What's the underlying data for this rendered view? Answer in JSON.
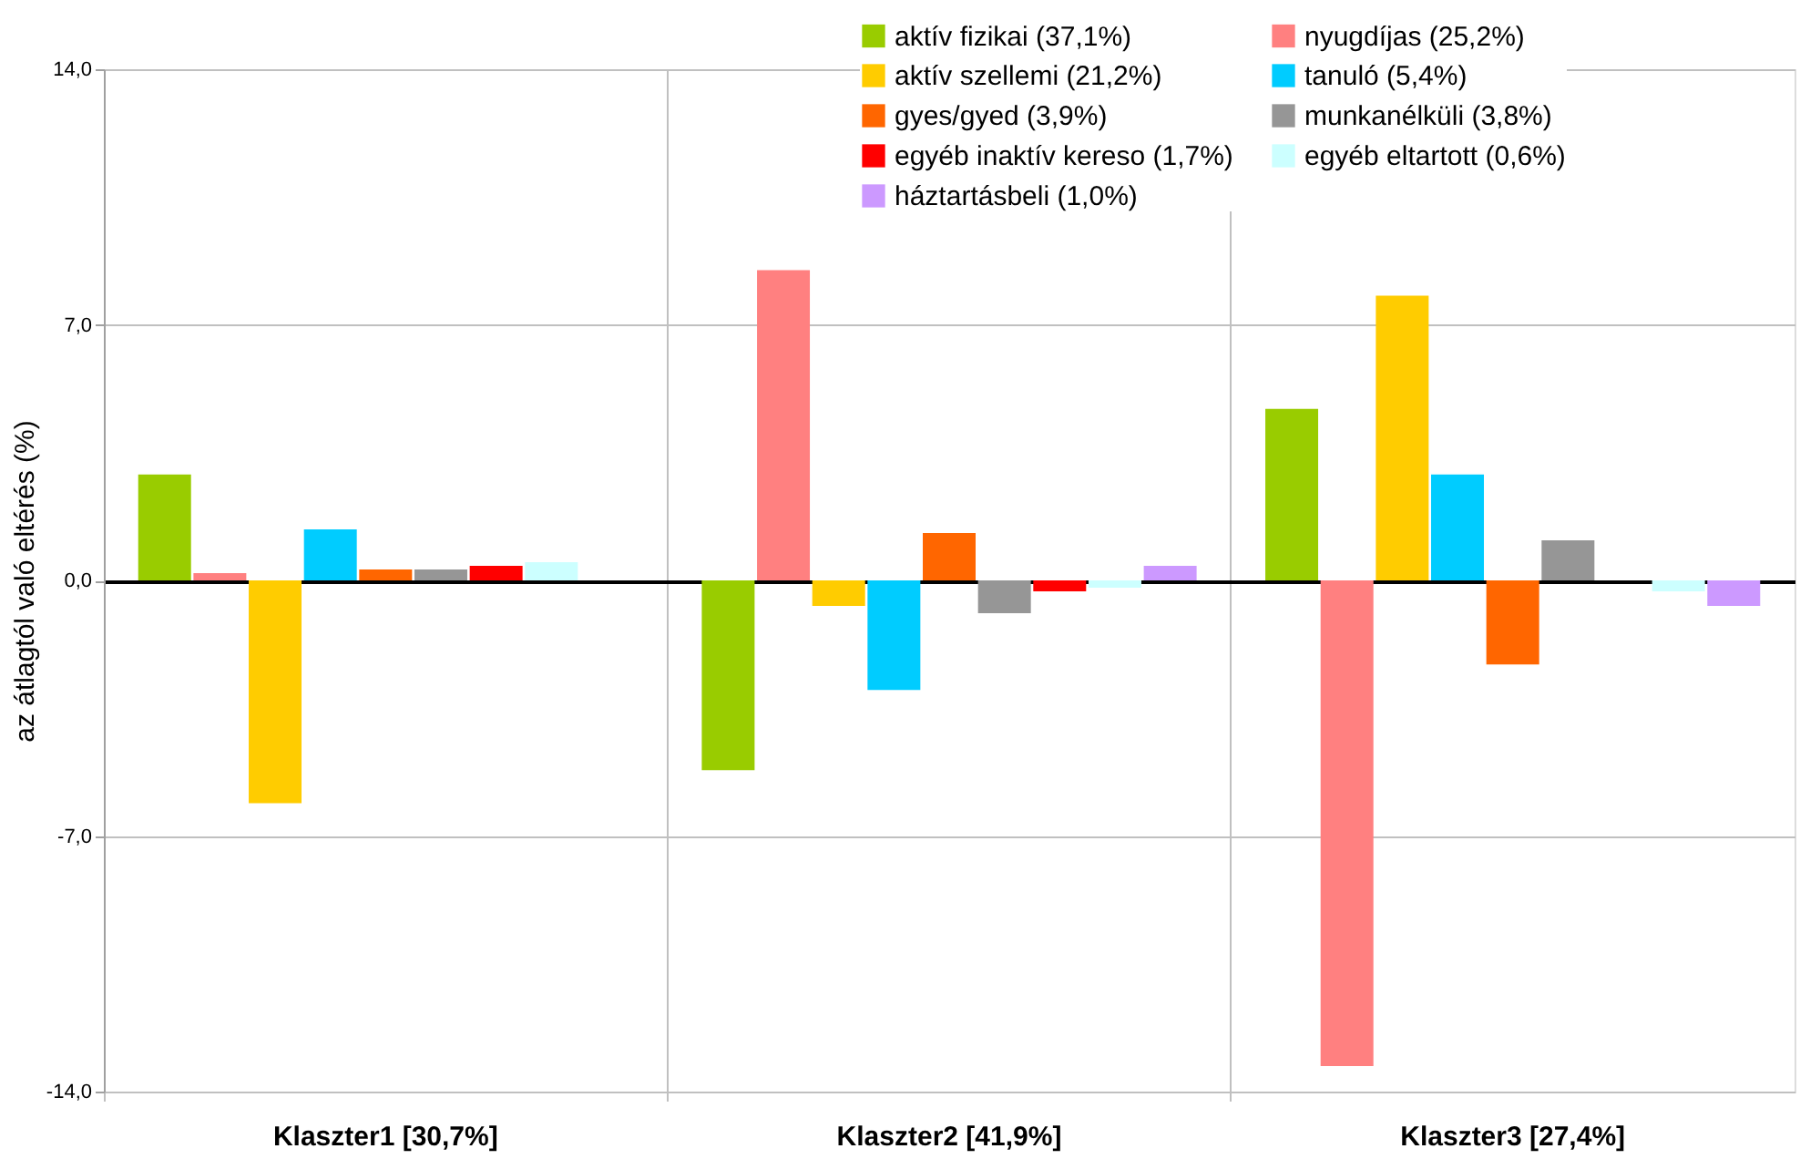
{
  "chart_data": {
    "type": "bar",
    "ylabel": "az átlagtól való eltérés (%)",
    "categories": [
      "Klaszter1 [30,7%]",
      "Klaszter2 [41,9%]",
      "Klaszter3 [27,4%]"
    ],
    "series": [
      {
        "name": "aktív fizikai (37,1%)",
        "color": "#99cc00",
        "values": [
          2.9,
          -5.2,
          4.7
        ]
      },
      {
        "name": "nyugdíjas (25,2%)",
        "color": "#ff8080",
        "values": [
          0.2,
          8.5,
          -13.3
        ]
      },
      {
        "name": "aktív szellemi (21,2%)",
        "color": "#ffcc00",
        "values": [
          -6.1,
          -0.7,
          7.8
        ]
      },
      {
        "name": "tanuló (5,4%)",
        "color": "#00ccff",
        "values": [
          1.4,
          -3.0,
          2.9
        ]
      },
      {
        "name": "gyes/gyed (3,9%)",
        "color": "#ff6600",
        "values": [
          0.3,
          1.3,
          -2.3
        ]
      },
      {
        "name": "munkanélküli (3,8%)",
        "color": "#969696",
        "values": [
          0.3,
          -0.9,
          1.1
        ]
      },
      {
        "name": "egyéb inaktív kereso (1,7%)",
        "color": "#ff0000",
        "values": [
          0.4,
          -0.3,
          0.0
        ]
      },
      {
        "name": "egyéb eltartott (0,6%)",
        "color": "#ccffff",
        "values": [
          0.5,
          -0.2,
          -0.3
        ]
      },
      {
        "name": "háztartásbeli (1,0%)",
        "color": "#cc99ff",
        "values": [
          0.0,
          0.4,
          -0.7
        ]
      }
    ],
    "ylim": [
      -14,
      14
    ],
    "yticks": [
      {
        "value": -14,
        "label": "-14,0"
      },
      {
        "value": -7,
        "label": "-7,0"
      },
      {
        "value": 0,
        "label": "0,0"
      },
      {
        "value": 7,
        "label": "7,0"
      },
      {
        "value": 14,
        "label": "14,0"
      }
    ],
    "grid": true,
    "legend": "top right"
  }
}
